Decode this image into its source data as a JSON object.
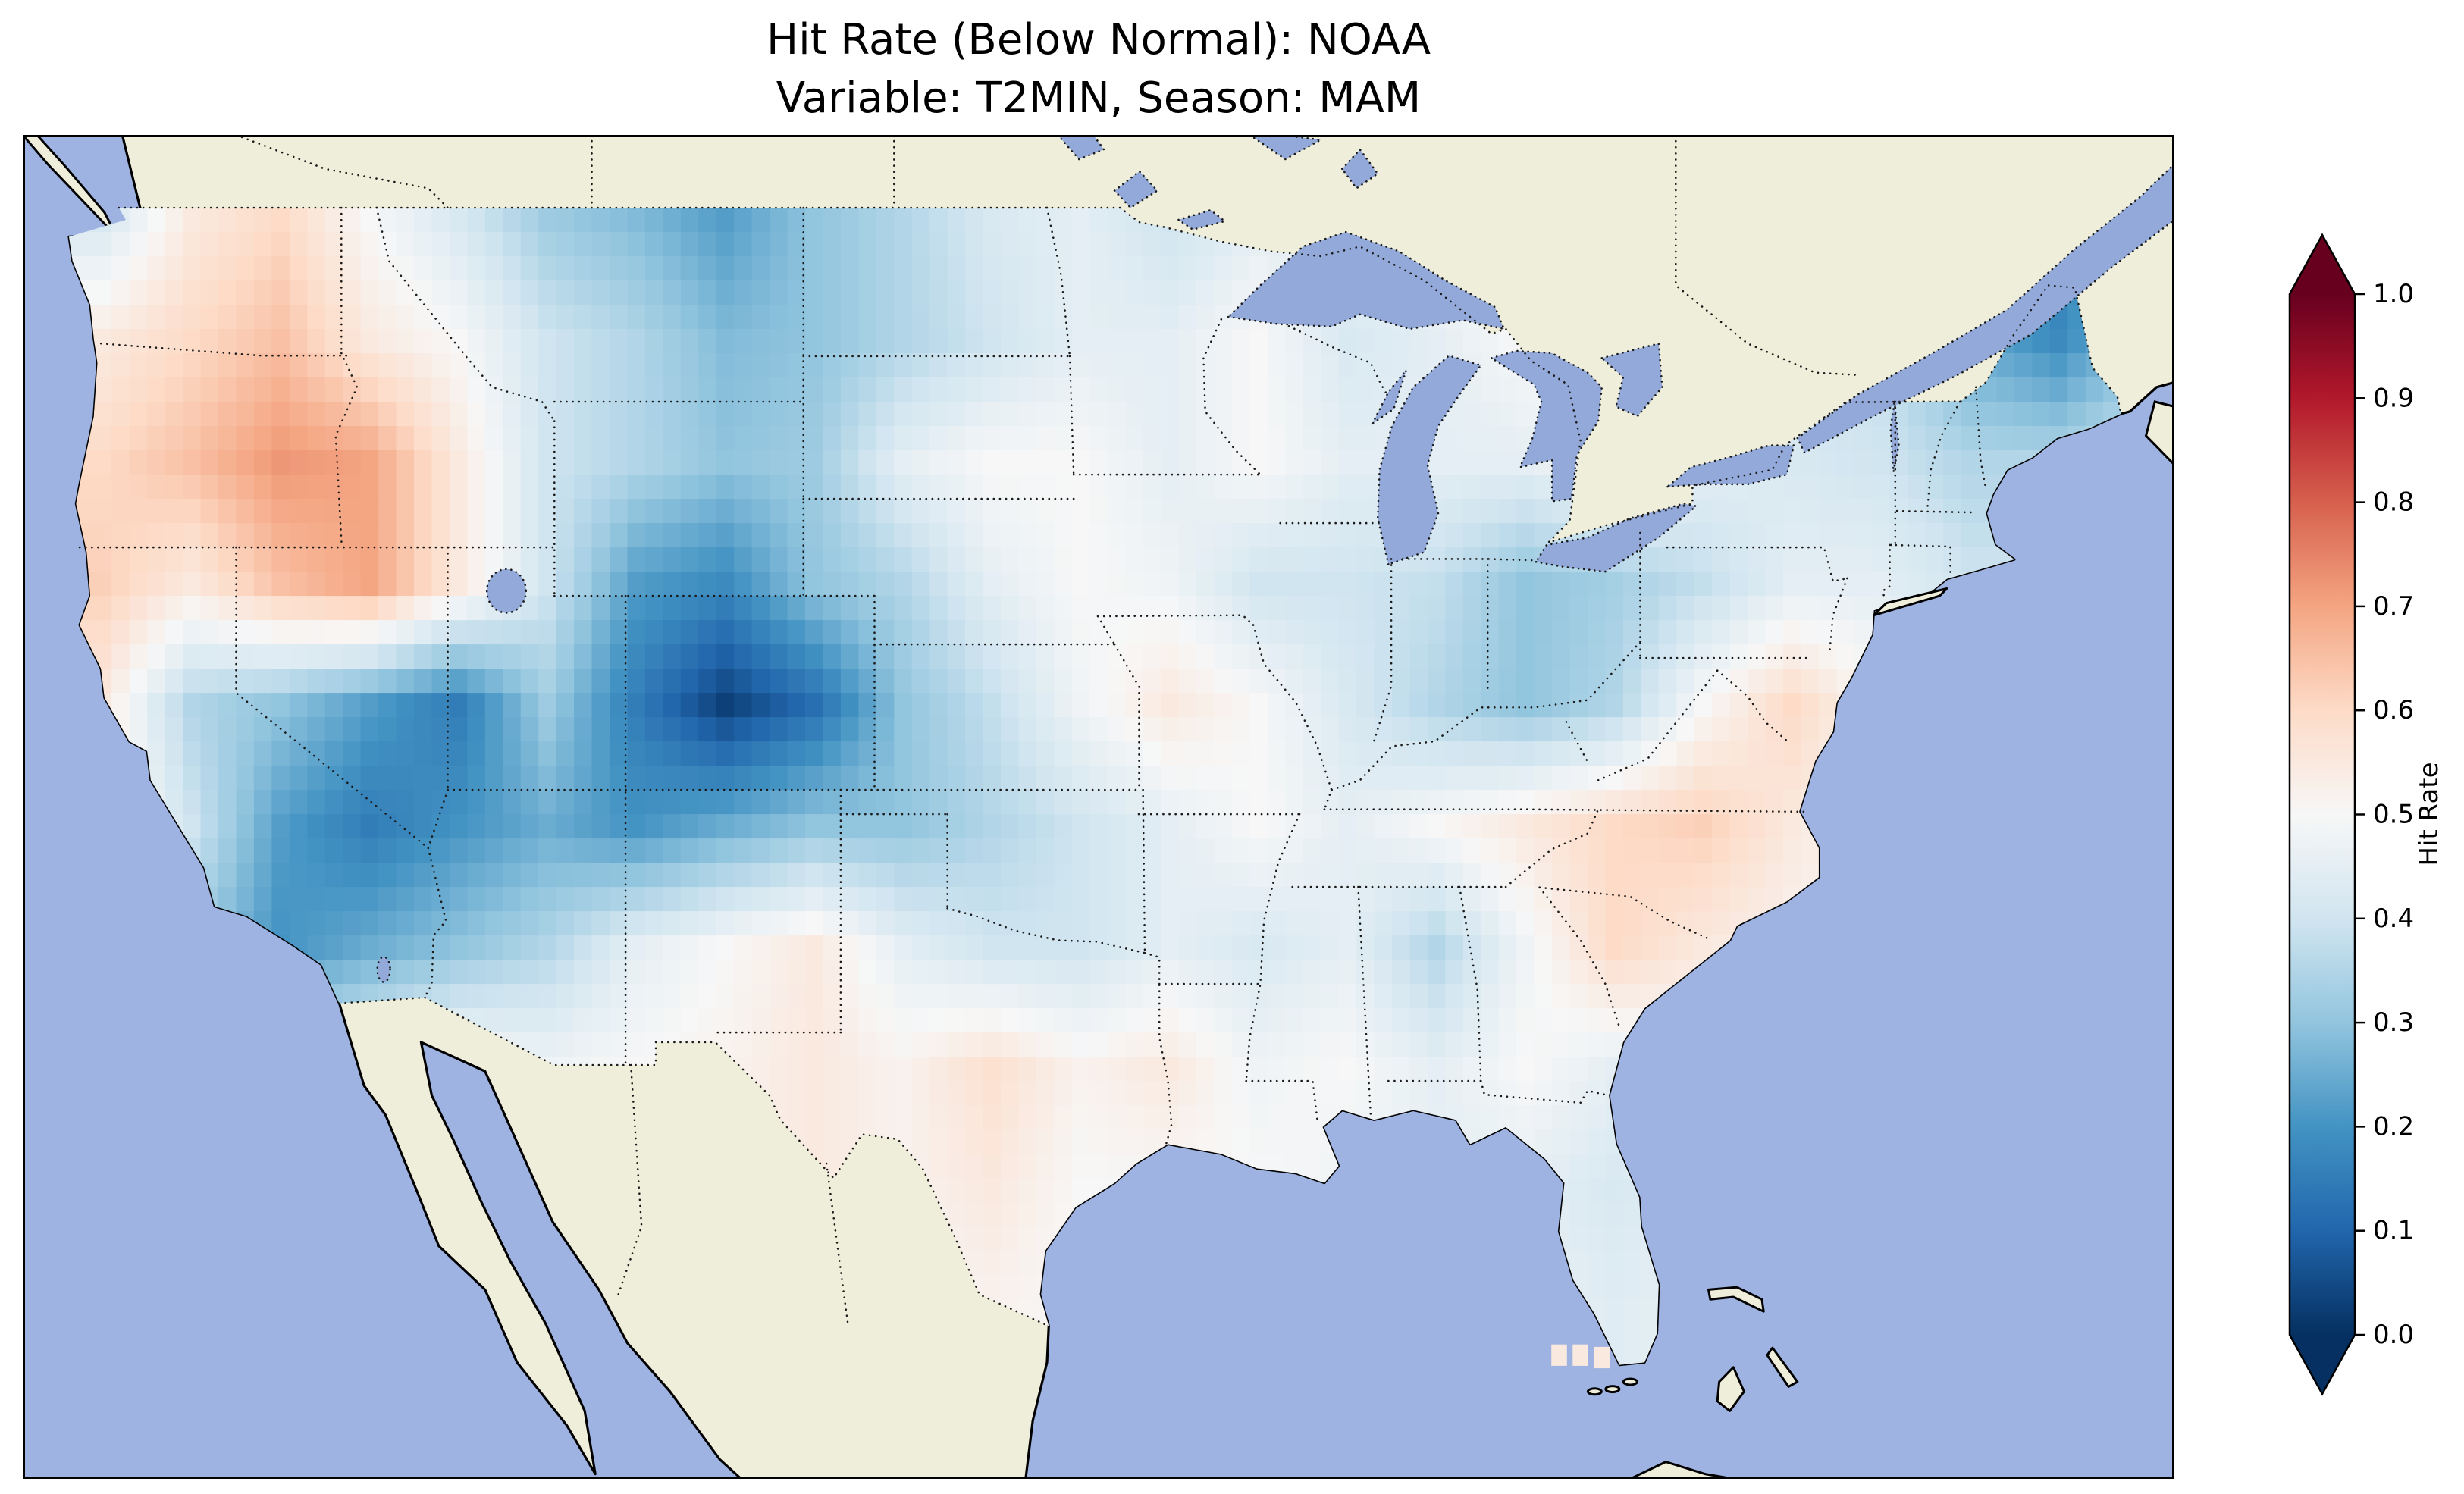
{
  "title": {
    "line1": "Hit Rate (Below Normal): NOAA",
    "line2": "Variable: T2MIN, Season: MAM"
  },
  "colorbar": {
    "label": "Hit Rate",
    "ticks": [
      "1.0",
      "0.9",
      "0.8",
      "0.7",
      "0.6",
      "0.5",
      "0.4",
      "0.3",
      "0.2",
      "0.1",
      "0.0"
    ]
  },
  "colors": {
    "background": "#ffffff",
    "ocean": "#9eb3e1",
    "land": "#efeeda",
    "lake": "#93a9d9",
    "coastline": "#000000",
    "border": "#1a1a1a",
    "colormap_stops": [
      "#053061",
      "#2166ac",
      "#4393c3",
      "#92c5de",
      "#d1e5f0",
      "#f7f7f7",
      "#fddbc7",
      "#f4a582",
      "#d6604d",
      "#b2182b",
      "#67001f"
    ]
  },
  "chart_data": {
    "type": "heatmap",
    "title": "Hit Rate (Below Normal): NOAA",
    "subtitle": "Variable: T2MIN, Season: MAM",
    "metric": "Hit Rate (Below Normal)",
    "dataset": "NOAA",
    "variable": "T2MIN",
    "season": "MAM",
    "region": "Contiguous United States",
    "colormap": "RdBu_r",
    "vmin": 0.0,
    "vmax": 1.0,
    "colorbar_label": "Hit Rate",
    "colorbar_extend": "both",
    "colorbar_ticks": [
      1.0,
      0.9,
      0.8,
      0.7,
      0.6,
      0.5,
      0.4,
      0.3,
      0.2,
      0.1,
      0.0
    ],
    "grid": {
      "lon_min": -125,
      "lon_max": -65,
      "lat_min": 25,
      "lat_max": 50,
      "cell_size_deg": 2.5
    },
    "lon_centers": [
      -123.75,
      -121.25,
      -118.75,
      -116.25,
      -113.75,
      -111.25,
      -108.75,
      -106.25,
      -103.75,
      -101.25,
      -98.75,
      -96.25,
      -93.75,
      -91.25,
      -88.75,
      -86.25,
      -83.75,
      -81.25,
      -78.75,
      -76.25,
      -73.75,
      -71.25,
      -68.75,
      -66.25
    ],
    "lat_centers": [
      48.75,
      46.25,
      43.75,
      41.25,
      38.75,
      36.25,
      33.75,
      31.25,
      28.75,
      26.25
    ],
    "values": [
      [
        0.42,
        0.55,
        0.6,
        0.5,
        0.42,
        0.32,
        0.28,
        0.22,
        0.3,
        0.35,
        0.42,
        0.45,
        0.4,
        0.45,
        0.45,
        0.5,
        0.5,
        0.5,
        0.45,
        0.45,
        0.4,
        0.3,
        0.15,
        0.25
      ],
      [
        0.55,
        0.6,
        0.65,
        0.55,
        0.5,
        0.4,
        0.35,
        0.28,
        0.3,
        0.35,
        0.4,
        0.45,
        0.45,
        0.5,
        0.42,
        0.45,
        0.5,
        0.5,
        0.45,
        0.4,
        0.38,
        0.25,
        0.18,
        0.3
      ],
      [
        0.6,
        0.65,
        0.72,
        0.7,
        0.55,
        0.4,
        0.35,
        0.3,
        0.32,
        0.45,
        0.5,
        0.5,
        0.45,
        0.5,
        0.45,
        0.45,
        0.45,
        0.5,
        0.45,
        0.42,
        0.4,
        0.35,
        0.35,
        0.4
      ],
      [
        0.62,
        0.55,
        0.65,
        0.7,
        0.55,
        0.4,
        0.22,
        0.18,
        0.3,
        0.35,
        0.45,
        0.5,
        0.48,
        0.4,
        0.4,
        0.38,
        0.3,
        0.33,
        0.38,
        0.45,
        0.45,
        0.4,
        0.4,
        0.4
      ],
      [
        0.55,
        0.35,
        0.3,
        0.22,
        0.15,
        0.32,
        0.15,
        0.03,
        0.12,
        0.3,
        0.38,
        0.48,
        0.55,
        0.5,
        0.42,
        0.35,
        0.3,
        0.35,
        0.5,
        0.6,
        0.5,
        0.45,
        0.45,
        0.45
      ],
      [
        0.55,
        0.4,
        0.22,
        0.15,
        0.2,
        0.25,
        0.2,
        0.25,
        0.3,
        0.3,
        0.35,
        0.4,
        0.45,
        0.5,
        0.45,
        0.5,
        0.55,
        0.6,
        0.62,
        0.55,
        0.5,
        0.5,
        0.5,
        0.5
      ],
      [
        0.5,
        0.32,
        0.2,
        0.25,
        0.3,
        0.35,
        0.45,
        0.5,
        0.55,
        0.45,
        0.4,
        0.4,
        0.45,
        0.42,
        0.45,
        0.35,
        0.48,
        0.6,
        0.55,
        0.52,
        0.5,
        0.5,
        0.5,
        0.5
      ],
      [
        0.5,
        0.45,
        0.4,
        0.45,
        0.52,
        0.48,
        0.5,
        0.52,
        0.55,
        0.52,
        0.58,
        0.52,
        0.55,
        0.48,
        0.5,
        0.45,
        0.5,
        0.45,
        0.5,
        0.5,
        0.5,
        0.5,
        0.5,
        0.5
      ],
      [
        0.5,
        0.48,
        0.45,
        0.48,
        0.5,
        0.5,
        0.5,
        0.52,
        0.55,
        0.52,
        0.55,
        0.5,
        0.5,
        0.5,
        0.48,
        0.46,
        0.45,
        0.42,
        0.45,
        0.5,
        0.5,
        0.5,
        0.5,
        0.5
      ],
      [
        0.5,
        0.5,
        0.5,
        0.5,
        0.5,
        0.5,
        0.5,
        0.5,
        0.52,
        0.5,
        0.52,
        0.5,
        0.5,
        0.5,
        0.5,
        0.48,
        0.46,
        0.44,
        0.46,
        0.5,
        0.5,
        0.5,
        0.5,
        0.5
      ]
    ],
    "stray_cells": [
      [
        -82.8,
        25.35,
        0.55
      ],
      [
        -82.2,
        25.35,
        0.55
      ],
      [
        -81.6,
        25.3,
        0.55
      ]
    ]
  }
}
